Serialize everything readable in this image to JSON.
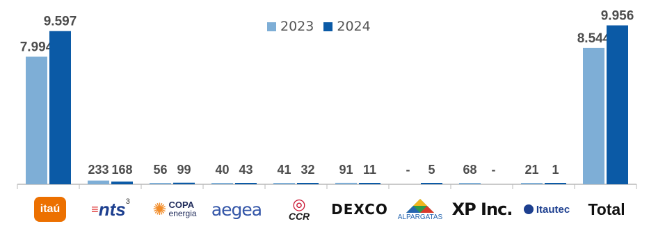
{
  "colors": {
    "2023": "#7eaed6",
    "2024": "#0b5aa6",
    "axis": "#b8b8b8",
    "label": "#4d4d4d"
  },
  "chart_data": {
    "type": "bar",
    "categories": [
      "itaú",
      "nts",
      "COPA energia",
      "aegea",
      "CCR",
      "DEXCO",
      "ALPARGATAS",
      "XP Inc.",
      "Itautec",
      "Total"
    ],
    "series": [
      {
        "name": "2023",
        "values": [
          7994,
          233,
          56,
          40,
          41,
          91,
          null,
          68,
          21,
          8544
        ],
        "labels": [
          "7.994",
          "233",
          "56",
          "40",
          "41",
          "91",
          "-",
          "68",
          "21",
          "8.544"
        ]
      },
      {
        "name": "2024",
        "values": [
          9597,
          168,
          99,
          43,
          32,
          11,
          5,
          null,
          1,
          9956
        ],
        "labels": [
          "9.597",
          "168",
          "99",
          "43",
          "32",
          "11",
          "5",
          "-",
          "1",
          "9.956"
        ]
      }
    ],
    "ylim": [
      0,
      10500
    ],
    "legend": "top-center",
    "grid": false
  },
  "logos": {
    "itau": "itaú",
    "nts": "nts",
    "nts_sup": "3",
    "copa_top": "COPA",
    "copa_bottom": "energia",
    "aegea": "aegea",
    "ccr": "CCR",
    "dexco": "DEXCO",
    "alpargatas": "ALPARGATAS",
    "xp": "XP Inc.",
    "itautec": "Itautec",
    "total": "Total"
  }
}
